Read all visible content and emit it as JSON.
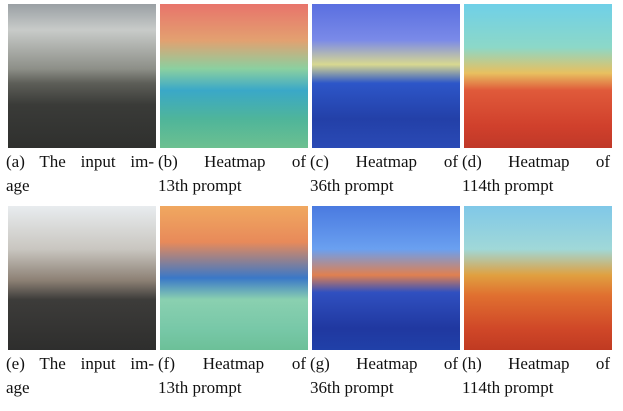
{
  "figure": {
    "panels": [
      {
        "caption": [
          "(a) The input im-",
          "age"
        ]
      },
      {
        "caption": [
          "(b) Heatmap of",
          "13th prompt"
        ]
      },
      {
        "caption": [
          "(c) Heatmap of",
          "36th prompt"
        ]
      },
      {
        "caption": [
          "(d) Heatmap of",
          "114th prompt"
        ]
      },
      {
        "caption": [
          "(e) The input im-",
          "age"
        ]
      },
      {
        "caption": [
          "(f) Heatmap of",
          "13th prompt"
        ]
      },
      {
        "caption": [
          "(g) Heatmap of",
          "36th prompt"
        ]
      },
      {
        "caption": [
          "(h) Heatmap of",
          "114th prompt"
        ]
      }
    ]
  }
}
